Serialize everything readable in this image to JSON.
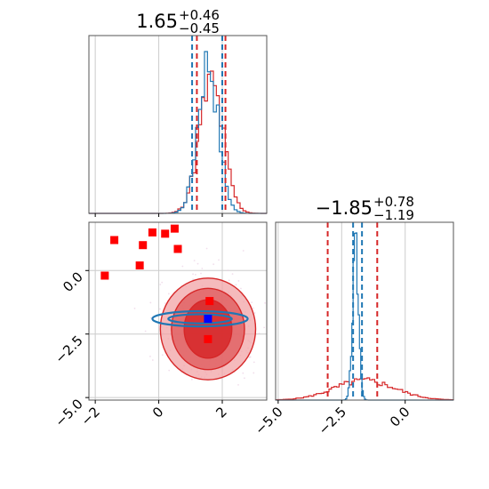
{
  "chart_data": {
    "type": "corner",
    "parameters": [
      "p0",
      "p1"
    ],
    "colors": {
      "blue": "#1f77b4",
      "red": "#d62728",
      "marker_red": "#ff0000",
      "marker_blue": "#0000ff",
      "grid": "#cccccc",
      "frame": "#555555"
    },
    "titles": [
      {
        "value": "1.65",
        "plus": "+0.46",
        "minus": "−0.45"
      },
      {
        "value": "−1.85",
        "plus": "+0.78",
        "minus": "−1.19"
      }
    ],
    "p0_axis": {
      "range": [
        -2.2,
        3.4
      ],
      "ticks": [
        -2,
        0,
        2
      ],
      "tick_labels": [
        "−2",
        "0",
        "2"
      ]
    },
    "p1_axis": {
      "range": [
        -5.1,
        1.9
      ],
      "ticks": [
        -5.0,
        -2.5,
        0.0
      ],
      "tick_labels": [
        "−5.0",
        "−2.5",
        "0.0"
      ]
    },
    "hist_p0": {
      "blue_quantiles": [
        1.05,
        1.65,
        2.0
      ],
      "red_quantiles": [
        1.2,
        1.65,
        2.1
      ],
      "blue_peak": 1.55,
      "blue_width": 0.32,
      "red_peak": 1.65,
      "red_width": 0.38
    },
    "hist_p1": {
      "blue_quantiles": [
        -2.05,
        -1.85,
        -1.7
      ],
      "red_quantiles": [
        -3.05,
        -1.85,
        -1.1
      ],
      "blue_peak": -1.95,
      "blue_width": 0.12,
      "red_peak": -1.6,
      "red_width": 1.2
    },
    "scatter_2d": {
      "red_points": [
        {
          "x": -1.7,
          "y": -0.2
        },
        {
          "x": -1.4,
          "y": 1.2
        },
        {
          "x": -0.5,
          "y": 1.0
        },
        {
          "x": -0.6,
          "y": 0.2
        },
        {
          "x": -0.2,
          "y": 1.5
        },
        {
          "x": 0.2,
          "y": 1.45
        },
        {
          "x": 0.5,
          "y": 1.65
        },
        {
          "x": 0.6,
          "y": 0.85
        },
        {
          "x": 1.6,
          "y": -1.2
        },
        {
          "x": 1.55,
          "y": -2.7
        }
      ],
      "blue_point": {
        "x": 1.55,
        "y": -1.9
      },
      "red_contours": [
        {
          "cx": 1.55,
          "cy": -2.3,
          "rx": 1.5,
          "ry": 2.0
        },
        {
          "cx": 1.55,
          "cy": -2.3,
          "rx": 1.15,
          "ry": 1.6
        },
        {
          "cx": 1.55,
          "cy": -2.3,
          "rx": 0.75,
          "ry": 1.15
        }
      ],
      "blue_contours": [
        {
          "cx": 1.3,
          "cy": -1.9,
          "rx": 1.5,
          "ry": 0.3
        },
        {
          "cx": 1.3,
          "cy": -1.9,
          "rx": 1.0,
          "ry": 0.18
        }
      ]
    }
  }
}
